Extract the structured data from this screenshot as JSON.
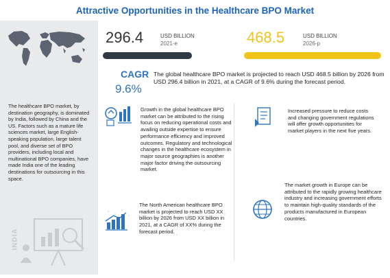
{
  "title": "Attractive Opportunities in the Healthcare BPO Market",
  "sidebar": {
    "text": "The healthcare BPO market, by destination geography, is dominated by India, followed by China and the US. Factors such as a mature life sciences market, large English-speaking population, large talent pool, and diverse set of BPO providers, including local and multinational BPO companies, have made India one of the leading destinations for outsourcing in this space.",
    "region": "INDIA"
  },
  "values": {
    "start": {
      "number": "296.4",
      "unit": "USD BILLION",
      "year": "2021-e",
      "color": "#2f3a44"
    },
    "end": {
      "number": "468.5",
      "unit": "USD BILLION",
      "year": "2026-p",
      "color": "#f0c419"
    }
  },
  "cagr": {
    "label": "CAGR",
    "value": "9.6%",
    "text": "The global healthcare BPO market is projected to reach USD 468.5 billion by 2026 from USD 296.4 billion in 2021, at a CAGR of 9.6% during the forecast period.",
    "color": "#2f74c0"
  },
  "cards": {
    "growth": "Growth in the global healthcare BPO market can be attributed to the rising focus on reducing operational costs and availing outside expertise to ensure performance efficiency and improved outcomes. Regulatory and technological changes in the healthcare ecosystem in major source geographies is another major factor driving the outsourcing market.",
    "pressure": "Increased pressure to reduce costs and changing government regulations will offer growth opportunities for market players in the next five years.",
    "north_america": "The North American healthcare BPO market is projected to reach USD XX billion by 2026 from USD XX billion in 2021, at a CAGR of XX% during the forecast period.",
    "europe": "The market growth in Europe can be attributed to the rapidly growing healthcare industry and increasing government efforts to maintain high-quality standards of the products manufactured in European countries."
  },
  "icons": [
    "world-map",
    "analysis-chart-icon",
    "growth-chart-icon",
    "pressure-document-icon",
    "bar-growth-icon",
    "globe-icon"
  ]
}
